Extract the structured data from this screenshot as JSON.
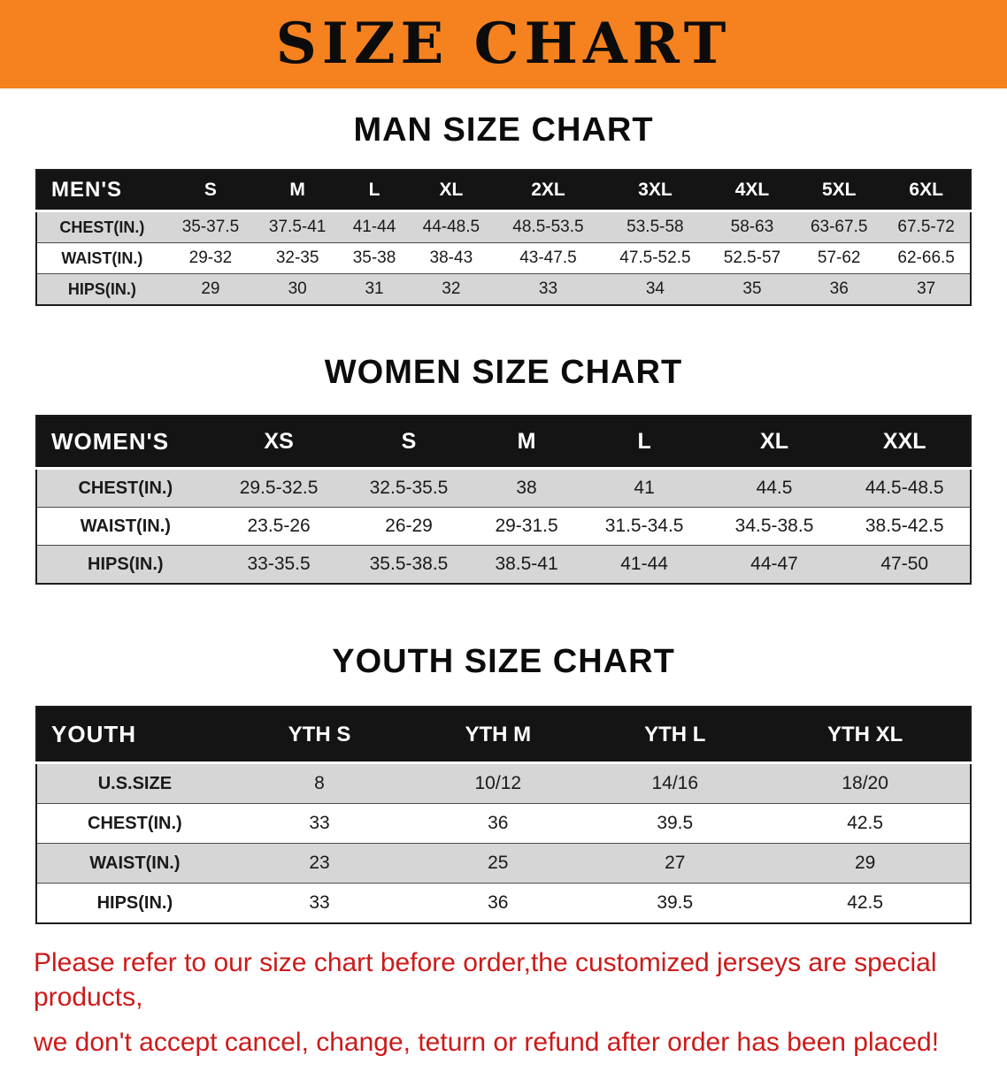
{
  "banner": {
    "title": "SIZE CHART"
  },
  "colors": {
    "banner_bg": "#f5821f",
    "header_bar": "#141414",
    "row_alt": "#d6d6d6",
    "disclaimer_text": "#cc1a1a"
  },
  "sections": [
    {
      "heading": "MAN SIZE CHART",
      "table": {
        "header": [
          "MEN'S",
          "S",
          "M",
          "L",
          "XL",
          "2XL",
          "3XL",
          "4XL",
          "5XL",
          "6XL"
        ],
        "rows": [
          [
            "CHEST(IN.)",
            "35-37.5",
            "37.5-41",
            "41-44",
            "44-48.5",
            "48.5-53.5",
            "53.5-58",
            "58-63",
            "63-67.5",
            "67.5-72"
          ],
          [
            "WAIST(IN.)",
            "29-32",
            "32-35",
            "35-38",
            "38-43",
            "43-47.5",
            "47.5-52.5",
            "52.5-57",
            "57-62",
            "62-66.5"
          ],
          [
            "HIPS(IN.)",
            "29",
            "30",
            "31",
            "32",
            "33",
            "34",
            "35",
            "36",
            "37"
          ]
        ]
      }
    },
    {
      "heading": "WOMEN SIZE CHART",
      "table": {
        "header": [
          "WOMEN'S",
          "XS",
          "S",
          "M",
          "L",
          "XL",
          "XXL"
        ],
        "rows": [
          [
            "CHEST(IN.)",
            "29.5-32.5",
            "32.5-35.5",
            "38",
            "41",
            "44.5",
            "44.5-48.5"
          ],
          [
            "WAIST(IN.)",
            "23.5-26",
            "26-29",
            "29-31.5",
            "31.5-34.5",
            "34.5-38.5",
            "38.5-42.5"
          ],
          [
            "HIPS(IN.)",
            "33-35.5",
            "35.5-38.5",
            "38.5-41",
            "41-44",
            "44-47",
            "47-50"
          ]
        ]
      }
    },
    {
      "heading": "YOUTH SIZE CHART",
      "table": {
        "header": [
          "YOUTH",
          "YTH S",
          "YTH M",
          "YTH L",
          "YTH XL"
        ],
        "rows": [
          [
            "U.S.SIZE",
            "8",
            "10/12",
            "14/16",
            "18/20"
          ],
          [
            "CHEST(IN.)",
            "33",
            "36",
            "39.5",
            "42.5"
          ],
          [
            "WAIST(IN.)",
            "23",
            "25",
            "27",
            "29"
          ],
          [
            "HIPS(IN.)",
            "33",
            "36",
            "39.5",
            "42.5"
          ]
        ]
      }
    }
  ],
  "disclaimer": {
    "line1": "Please refer to our size chart before order,the customized jerseys are special products,",
    "line2": "we don't accept cancel, change, teturn or refund after order has been placed!"
  }
}
